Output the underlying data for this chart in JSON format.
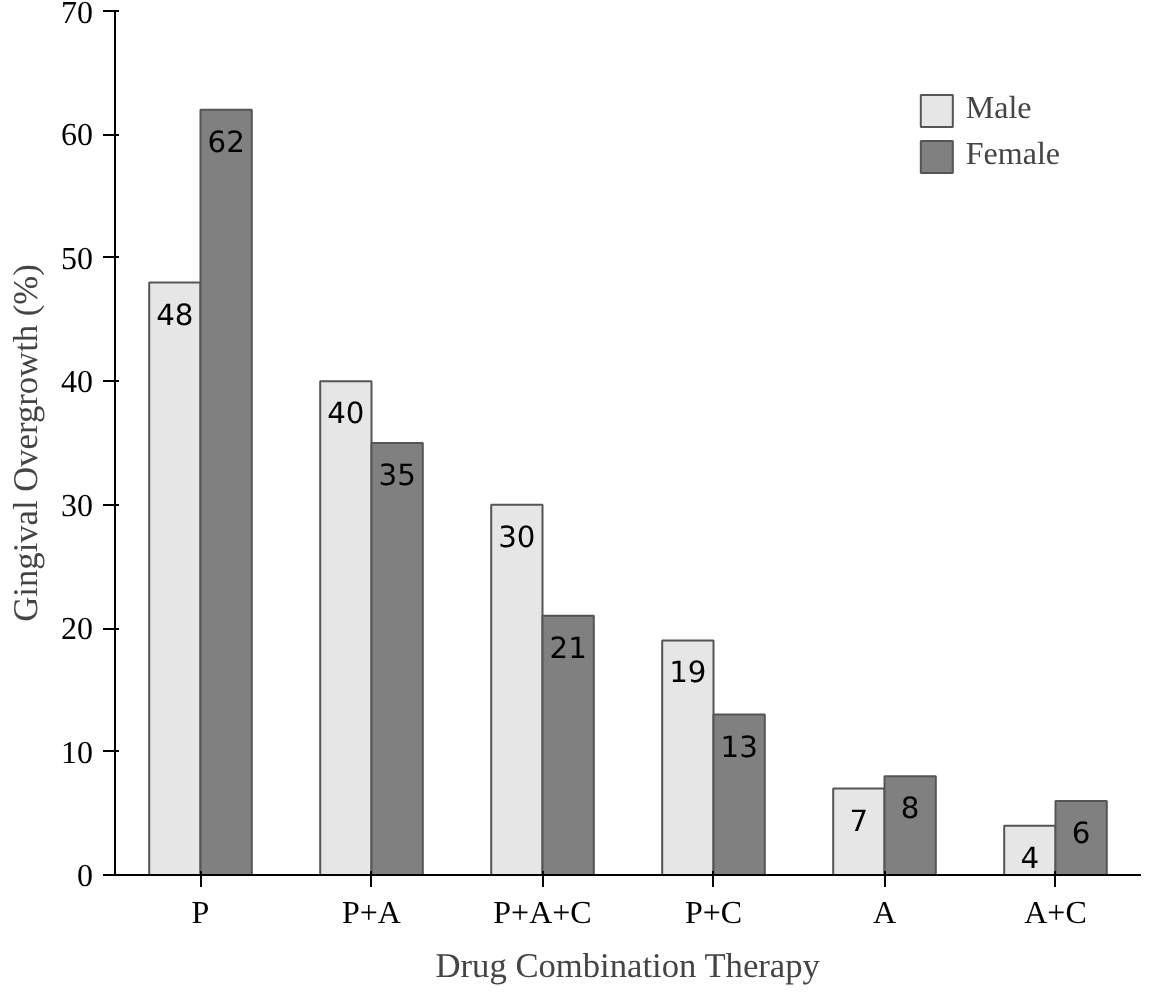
{
  "chart_data": {
    "type": "bar",
    "xlabel": "Drug Combination Therapy",
    "ylabel": "Gingival Overgrowth (%)",
    "categories": [
      "P",
      "P+A",
      "P+A+C",
      "P+C",
      "A",
      "A+C"
    ],
    "series": [
      {
        "name": "Male",
        "color": "#e6e6e6",
        "values": [
          48,
          40,
          30,
          19,
          7,
          4
        ]
      },
      {
        "name": "Female",
        "color": "#808080",
        "values": [
          62,
          35,
          21,
          13,
          8,
          6
        ]
      }
    ],
    "ylim": [
      0,
      70
    ],
    "yticks": [
      0,
      10,
      20,
      30,
      40,
      50,
      60,
      70
    ],
    "grid": false,
    "legend": "top right",
    "data_labels": true
  }
}
